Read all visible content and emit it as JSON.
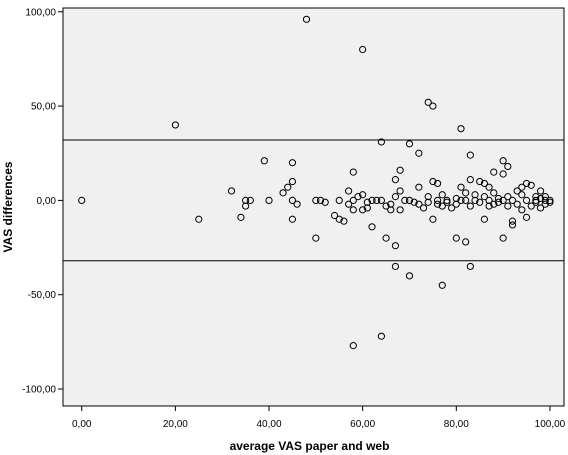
{
  "chart_data": {
    "type": "scatter",
    "title": "",
    "xlabel": "average VAS paper and web",
    "ylabel": "VAS differences",
    "xlim": [
      -4,
      103
    ],
    "ylim": [
      -109,
      102
    ],
    "x_ticks": [
      0,
      20,
      40,
      60,
      80,
      100
    ],
    "y_ticks": [
      -100,
      -50,
      0,
      50,
      100
    ],
    "x_tick_labels": [
      "0,00",
      "20,00",
      "40,00",
      "60,00",
      "80,00",
      "100,00"
    ],
    "y_tick_labels": [
      "-100,00",
      "-50,00",
      "0,00",
      "50,00",
      "100,00"
    ],
    "reference_lines": [
      32,
      -32
    ],
    "grid": false,
    "legend": "none",
    "colors": {
      "plot_background": "#f0f0f0",
      "marker_stroke": "#000000",
      "line": "#000000"
    },
    "points": [
      {
        "x": 0,
        "y": 0
      },
      {
        "x": 20,
        "y": 40
      },
      {
        "x": 25,
        "y": -10
      },
      {
        "x": 32,
        "y": 5
      },
      {
        "x": 34,
        "y": -9
      },
      {
        "x": 35,
        "y": -3
      },
      {
        "x": 35,
        "y": 0
      },
      {
        "x": 36,
        "y": 0
      },
      {
        "x": 39,
        "y": 21
      },
      {
        "x": 40,
        "y": 0
      },
      {
        "x": 43,
        "y": 4
      },
      {
        "x": 44,
        "y": 7
      },
      {
        "x": 45,
        "y": 10
      },
      {
        "x": 45,
        "y": 20
      },
      {
        "x": 45,
        "y": -10
      },
      {
        "x": 45,
        "y": 0
      },
      {
        "x": 46,
        "y": -2
      },
      {
        "x": 48,
        "y": 96
      },
      {
        "x": 50,
        "y": 0
      },
      {
        "x": 50,
        "y": -20
      },
      {
        "x": 51,
        "y": 0
      },
      {
        "x": 52,
        "y": -1
      },
      {
        "x": 54,
        "y": -8
      },
      {
        "x": 55,
        "y": 0
      },
      {
        "x": 55,
        "y": -10
      },
      {
        "x": 56,
        "y": -11
      },
      {
        "x": 57,
        "y": -2
      },
      {
        "x": 57,
        "y": 5
      },
      {
        "x": 58,
        "y": 15
      },
      {
        "x": 58,
        "y": -5
      },
      {
        "x": 58,
        "y": 0
      },
      {
        "x": 59,
        "y": 2
      },
      {
        "x": 58,
        "y": -77
      },
      {
        "x": 60,
        "y": 80
      },
      {
        "x": 60,
        "y": 3
      },
      {
        "x": 60,
        "y": -5
      },
      {
        "x": 61,
        "y": -1
      },
      {
        "x": 61,
        "y": -4
      },
      {
        "x": 62,
        "y": -14
      },
      {
        "x": 62,
        "y": 0
      },
      {
        "x": 63,
        "y": 0
      },
      {
        "x": 64,
        "y": -72
      },
      {
        "x": 64,
        "y": 31
      },
      {
        "x": 64,
        "y": 0
      },
      {
        "x": 65,
        "y": -3
      },
      {
        "x": 65,
        "y": -20
      },
      {
        "x": 66,
        "y": -5
      },
      {
        "x": 66,
        "y": -2
      },
      {
        "x": 67,
        "y": -35
      },
      {
        "x": 67,
        "y": 2
      },
      {
        "x": 67,
        "y": 11
      },
      {
        "x": 67,
        "y": -24
      },
      {
        "x": 68,
        "y": 16
      },
      {
        "x": 68,
        "y": 5
      },
      {
        "x": 68,
        "y": -5
      },
      {
        "x": 69,
        "y": 0
      },
      {
        "x": 70,
        "y": 30
      },
      {
        "x": 70,
        "y": -40
      },
      {
        "x": 70,
        "y": 0
      },
      {
        "x": 71,
        "y": -1
      },
      {
        "x": 72,
        "y": 7
      },
      {
        "x": 72,
        "y": -2
      },
      {
        "x": 73,
        "y": -4
      },
      {
        "x": 72,
        "y": 25
      },
      {
        "x": 74,
        "y": 52
      },
      {
        "x": 74,
        "y": 2
      },
      {
        "x": 74,
        "y": -1
      },
      {
        "x": 75,
        "y": 50
      },
      {
        "x": 75,
        "y": 10
      },
      {
        "x": 75,
        "y": -10
      },
      {
        "x": 76,
        "y": 9
      },
      {
        "x": 76,
        "y": 0
      },
      {
        "x": 76,
        "y": -2
      },
      {
        "x": 77,
        "y": -45
      },
      {
        "x": 77,
        "y": 3
      },
      {
        "x": 77,
        "y": -3
      },
      {
        "x": 78,
        "y": -1
      },
      {
        "x": 78,
        "y": 0
      },
      {
        "x": 79,
        "y": -4
      },
      {
        "x": 80,
        "y": 1
      },
      {
        "x": 80,
        "y": -20
      },
      {
        "x": 80,
        "y": -2
      },
      {
        "x": 81,
        "y": 0
      },
      {
        "x": 81,
        "y": 38
      },
      {
        "x": 81,
        "y": 7
      },
      {
        "x": 82,
        "y": -22
      },
      {
        "x": 82,
        "y": 0
      },
      {
        "x": 82,
        "y": 4
      },
      {
        "x": 83,
        "y": 24
      },
      {
        "x": 83,
        "y": -35
      },
      {
        "x": 83,
        "y": 11
      },
      {
        "x": 83,
        "y": -3
      },
      {
        "x": 84,
        "y": 3
      },
      {
        "x": 84,
        "y": 0
      },
      {
        "x": 85,
        "y": 10
      },
      {
        "x": 85,
        "y": -1
      },
      {
        "x": 86,
        "y": 9
      },
      {
        "x": 86,
        "y": -10
      },
      {
        "x": 86,
        "y": 2
      },
      {
        "x": 87,
        "y": -3
      },
      {
        "x": 87,
        "y": 7
      },
      {
        "x": 87,
        "y": 0
      },
      {
        "x": 88,
        "y": 15
      },
      {
        "x": 88,
        "y": 4
      },
      {
        "x": 88,
        "y": -2
      },
      {
        "x": 89,
        "y": 1
      },
      {
        "x": 89,
        "y": -1
      },
      {
        "x": 90,
        "y": 21
      },
      {
        "x": 90,
        "y": 14
      },
      {
        "x": 90,
        "y": 0
      },
      {
        "x": 90,
        "y": -20
      },
      {
        "x": 91,
        "y": 18
      },
      {
        "x": 91,
        "y": -3
      },
      {
        "x": 91,
        "y": 2
      },
      {
        "x": 92,
        "y": -11
      },
      {
        "x": 92,
        "y": 0
      },
      {
        "x": 92,
        "y": -13
      },
      {
        "x": 93,
        "y": 5
      },
      {
        "x": 93,
        "y": -2
      },
      {
        "x": 94,
        "y": 3
      },
      {
        "x": 94,
        "y": 7
      },
      {
        "x": 94,
        "y": -5
      },
      {
        "x": 95,
        "y": 9
      },
      {
        "x": 95,
        "y": 0
      },
      {
        "x": 95,
        "y": -9
      },
      {
        "x": 96,
        "y": 8
      },
      {
        "x": 96,
        "y": -3
      },
      {
        "x": 97,
        "y": 2
      },
      {
        "x": 97,
        "y": -1
      },
      {
        "x": 97,
        "y": 0
      },
      {
        "x": 98,
        "y": 5
      },
      {
        "x": 98,
        "y": -4
      },
      {
        "x": 98,
        "y": 1
      },
      {
        "x": 99,
        "y": -2
      },
      {
        "x": 99,
        "y": 2
      },
      {
        "x": 99,
        "y": 0
      },
      {
        "x": 100,
        "y": -1
      },
      {
        "x": 100,
        "y": 0
      }
    ]
  }
}
